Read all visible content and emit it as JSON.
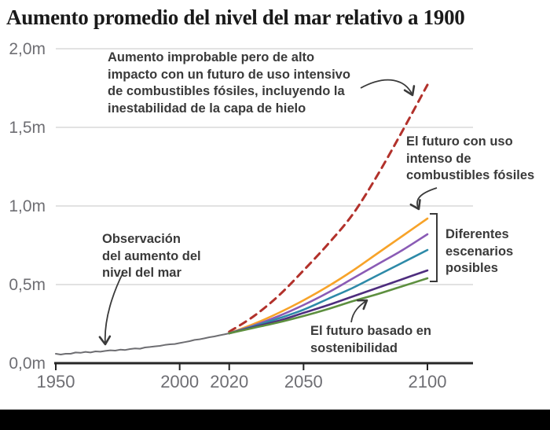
{
  "title": "Aumento promedio del nivel del mar relativo a 1900",
  "annotations": {
    "high_impact": "Aumento improbable pero de alto\nimpacto con un futuro de uso intensivo\nde combustibles fósiles, incluyendo la\ninestabilidad de la capa de hielo",
    "fossil": "El futuro con uso\nintenso de\ncombustibles fósiles",
    "scenarios": "Diferentes\nescenarios\nposibles",
    "sustainable": "El futuro basado en\nsostenibilidad",
    "observed": "Observación\ndel aumento del\nnivel del mar"
  },
  "colors": {
    "title_text": "#1a1a1a",
    "annotation_text": "#3a3a3a",
    "axis": "#262626",
    "axis_labels": "#6e6e73",
    "gridline": "#d8d8d8",
    "observed_line": "#6e6e72",
    "high_impact_dashed": "#b2312b",
    "fossil_intensive": "#f7a329",
    "scenario_purple": "#8a5bb5",
    "scenario_teal": "#2d8aa8",
    "scenario_dark_purple": "#4e2d7e",
    "sustainable_green": "#5d8f3f",
    "bottom_bar": "#000000"
  },
  "chart_data": {
    "type": "line",
    "title": "Aumento promedio del nivel del mar relativo a 1900",
    "xlabel": "",
    "ylabel": "",
    "x_range": [
      1944,
      2119
    ],
    "y_range": [
      0,
      2
    ],
    "grid": "horizontal",
    "unit": "m",
    "x_ticks": [
      {
        "year": 1950,
        "label": "1950"
      },
      {
        "year": 2000,
        "label": "2000"
      },
      {
        "year": 2020,
        "label": "2020"
      },
      {
        "year": 2050,
        "label": "2050"
      },
      {
        "year": 2100,
        "label": "2100"
      }
    ],
    "y_ticks": [
      {
        "value": 0,
        "label": "0,0m"
      },
      {
        "value": 0.5,
        "label": "0,5m"
      },
      {
        "value": 1,
        "label": "1,0m"
      },
      {
        "value": 1.5,
        "label": "1,5m"
      },
      {
        "value": 2,
        "label": "2,0m"
      }
    ],
    "series": [
      {
        "id": "observado",
        "label": "Observación del aumento del nivel del mar",
        "color": "#6e6e72",
        "width": 2,
        "dashed": false,
        "smooth": false,
        "points": [
          [
            1950,
            0.06
          ],
          [
            1952,
            0.055
          ],
          [
            1954,
            0.06
          ],
          [
            1956,
            0.06
          ],
          [
            1958,
            0.068
          ],
          [
            1960,
            0.066
          ],
          [
            1962,
            0.072
          ],
          [
            1964,
            0.068
          ],
          [
            1966,
            0.075
          ],
          [
            1968,
            0.073
          ],
          [
            1970,
            0.078
          ],
          [
            1972,
            0.082
          ],
          [
            1974,
            0.08
          ],
          [
            1976,
            0.086
          ],
          [
            1978,
            0.084
          ],
          [
            1980,
            0.09
          ],
          [
            1982,
            0.094
          ],
          [
            1984,
            0.092
          ],
          [
            1986,
            0.1
          ],
          [
            1988,
            0.103
          ],
          [
            1990,
            0.107
          ],
          [
            1992,
            0.11
          ],
          [
            1994,
            0.116
          ],
          [
            1996,
            0.12
          ],
          [
            1998,
            0.122
          ],
          [
            2000,
            0.128
          ],
          [
            2002,
            0.134
          ],
          [
            2004,
            0.14
          ],
          [
            2006,
            0.148
          ],
          [
            2008,
            0.152
          ],
          [
            2010,
            0.158
          ],
          [
            2012,
            0.165
          ],
          [
            2014,
            0.17
          ],
          [
            2016,
            0.177
          ],
          [
            2018,
            0.183
          ],
          [
            2020,
            0.19
          ]
        ]
      },
      {
        "id": "alto-impacto-improbable",
        "label": "Aumento improbable pero de alto impacto con un futuro de uso intensivo de combustibles fósiles, incluyendo la inestabilidad de la capa de hielo",
        "color": "#b2312b",
        "width": 3,
        "dashed": true,
        "smooth": true,
        "points": [
          [
            2020,
            0.2
          ],
          [
            2030,
            0.3
          ],
          [
            2040,
            0.43
          ],
          [
            2050,
            0.59
          ],
          [
            2060,
            0.76
          ],
          [
            2070,
            0.95
          ],
          [
            2080,
            1.2
          ],
          [
            2090,
            1.48
          ],
          [
            2100,
            1.77
          ]
        ]
      },
      {
        "id": "uso-intenso-combustibles-fosiles",
        "label": "El futuro con uso intenso de combustibles fósiles",
        "color": "#f7a329",
        "width": 2.6,
        "dashed": false,
        "smooth": true,
        "points": [
          [
            2020,
            0.19
          ],
          [
            2030,
            0.25
          ],
          [
            2040,
            0.32
          ],
          [
            2050,
            0.4
          ],
          [
            2060,
            0.49
          ],
          [
            2070,
            0.59
          ],
          [
            2080,
            0.7
          ],
          [
            2090,
            0.81
          ],
          [
            2100,
            0.92
          ]
        ]
      },
      {
        "id": "escenario-posible-2",
        "label": "Diferentes escenarios posibles",
        "color": "#8a5bb5",
        "width": 2.6,
        "dashed": false,
        "smooth": true,
        "points": [
          [
            2020,
            0.19
          ],
          [
            2030,
            0.24
          ],
          [
            2040,
            0.3
          ],
          [
            2050,
            0.37
          ],
          [
            2060,
            0.45
          ],
          [
            2070,
            0.54
          ],
          [
            2080,
            0.63
          ],
          [
            2090,
            0.72
          ],
          [
            2100,
            0.82
          ]
        ]
      },
      {
        "id": "escenario-posible-3",
        "label": "Diferentes escenarios posibles",
        "color": "#2d8aa8",
        "width": 2.6,
        "dashed": false,
        "smooth": true,
        "points": [
          [
            2020,
            0.19
          ],
          [
            2030,
            0.235
          ],
          [
            2040,
            0.285
          ],
          [
            2050,
            0.34
          ],
          [
            2060,
            0.41
          ],
          [
            2070,
            0.48
          ],
          [
            2080,
            0.56
          ],
          [
            2090,
            0.64
          ],
          [
            2100,
            0.72
          ]
        ]
      },
      {
        "id": "escenario-posible-4",
        "label": "Diferentes escenarios posibles",
        "color": "#4e2d7e",
        "width": 2.6,
        "dashed": false,
        "smooth": true,
        "points": [
          [
            2020,
            0.19
          ],
          [
            2030,
            0.23
          ],
          [
            2040,
            0.27
          ],
          [
            2050,
            0.32
          ],
          [
            2060,
            0.37
          ],
          [
            2070,
            0.425
          ],
          [
            2080,
            0.48
          ],
          [
            2090,
            0.535
          ],
          [
            2100,
            0.59
          ]
        ]
      },
      {
        "id": "futuro-sostenible",
        "label": "El futuro basado en sostenibilidad",
        "color": "#5d8f3f",
        "width": 2.6,
        "dashed": false,
        "smooth": true,
        "points": [
          [
            2020,
            0.19
          ],
          [
            2030,
            0.225
          ],
          [
            2040,
            0.26
          ],
          [
            2050,
            0.3
          ],
          [
            2060,
            0.345
          ],
          [
            2070,
            0.395
          ],
          [
            2080,
            0.44
          ],
          [
            2090,
            0.49
          ],
          [
            2100,
            0.54
          ]
        ]
      }
    ],
    "annotations": [
      "Aumento improbable pero de alto impacto con un futuro de uso intensivo de combustibles fósiles, incluyendo la inestabilidad de la capa de hielo",
      "El futuro con uso intenso de combustibles fósiles",
      "Diferentes escenarios posibles",
      "El futuro basado en sostenibilidad",
      "Observación del aumento del nivel del mar"
    ]
  }
}
